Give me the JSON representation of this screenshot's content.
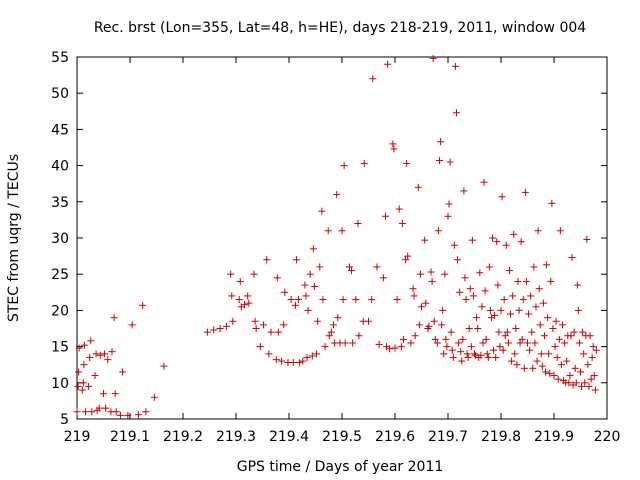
{
  "chart_data": {
    "type": "scatter",
    "title": "Rec. brst (Lon=355, Lat=48, h=HE), days 218-219, 2011, window 004",
    "xlabel": "GPS time / Days of year 2011",
    "ylabel": "STEC from uqrg / TECUs",
    "xlim": [
      219,
      220
    ],
    "ylim": [
      5,
      55
    ],
    "x_ticks": [
      "219",
      "219.1",
      "219.2",
      "219.3",
      "219.4",
      "219.5",
      "219.6",
      "219.7",
      "219.8",
      "219.9",
      "220"
    ],
    "y_ticks": [
      "5",
      "10",
      "15",
      "20",
      "25",
      "30",
      "35",
      "40",
      "45",
      "50",
      "55"
    ],
    "marker": "+",
    "color": "#cc0000",
    "grid": false,
    "series": [
      {
        "name": "STEC",
        "points": [
          [
            219.0,
            6.0
          ],
          [
            219.002,
            9.5
          ],
          [
            219.003,
            11.5
          ],
          [
            219.004,
            14.8
          ],
          [
            219.01,
            9.0
          ],
          [
            219.012,
            10.0
          ],
          [
            219.013,
            12.5
          ],
          [
            219.014,
            15.2
          ],
          [
            219.016,
            6.0
          ],
          [
            219.022,
            9.5
          ],
          [
            219.024,
            13.5
          ],
          [
            219.026,
            15.8
          ],
          [
            219.028,
            6.0
          ],
          [
            219.034,
            11.0
          ],
          [
            219.036,
            14.0
          ],
          [
            219.038,
            6.2
          ],
          [
            219.042,
            6.5
          ],
          [
            219.044,
            13.8
          ],
          [
            219.05,
            8.5
          ],
          [
            219.052,
            14.0
          ],
          [
            219.054,
            6.5
          ],
          [
            219.058,
            13.2
          ],
          [
            219.064,
            6.0
          ],
          [
            219.066,
            14.3
          ],
          [
            219.07,
            19.0
          ],
          [
            219.072,
            8.5
          ],
          [
            219.074,
            6.0
          ],
          [
            219.082,
            5.5
          ],
          [
            219.086,
            11.5
          ],
          [
            219.096,
            5.5
          ],
          [
            219.104,
            18.0
          ],
          [
            219.116,
            5.6
          ],
          [
            219.124,
            20.7
          ],
          [
            219.13,
            6.0
          ],
          [
            219.146,
            8.0
          ],
          [
            219.164,
            12.3
          ],
          [
            219.246,
            17.0
          ],
          [
            219.258,
            17.3
          ],
          [
            219.27,
            17.5
          ],
          [
            219.282,
            17.8
          ],
          [
            219.29,
            25.0
          ],
          [
            219.292,
            22.0
          ],
          [
            219.294,
            18.5
          ],
          [
            219.306,
            21.5
          ],
          [
            219.308,
            24.0
          ],
          [
            219.31,
            20.5
          ],
          [
            219.316,
            20.8
          ],
          [
            219.322,
            22.0
          ],
          [
            219.324,
            21.0
          ],
          [
            219.334,
            25.0
          ],
          [
            219.336,
            18.5
          ],
          [
            219.338,
            17.5
          ],
          [
            219.346,
            15.0
          ],
          [
            219.352,
            18.0
          ],
          [
            219.358,
            27.0
          ],
          [
            219.362,
            14.0
          ],
          [
            219.366,
            17.0
          ],
          [
            219.376,
            13.2
          ],
          [
            219.378,
            24.5
          ],
          [
            219.38,
            17.0
          ],
          [
            219.386,
            13.0
          ],
          [
            219.39,
            18.0
          ],
          [
            219.392,
            22.5
          ],
          [
            219.398,
            12.8
          ],
          [
            219.404,
            21.5
          ],
          [
            219.408,
            12.8
          ],
          [
            219.412,
            20.7
          ],
          [
            219.414,
            27.0
          ],
          [
            219.418,
            21.5
          ],
          [
            219.42,
            12.8
          ],
          [
            219.426,
            13.0
          ],
          [
            219.43,
            23.5
          ],
          [
            219.432,
            22.0
          ],
          [
            219.434,
            13.5
          ],
          [
            219.436,
            20.0
          ],
          [
            219.44,
            25.0
          ],
          [
            219.444,
            13.7
          ],
          [
            219.446,
            28.5
          ],
          [
            219.448,
            23.3
          ],
          [
            219.452,
            14.0
          ],
          [
            219.454,
            18.5
          ],
          [
            219.458,
            26.0
          ],
          [
            219.462,
            33.7
          ],
          [
            219.464,
            21.5
          ],
          [
            219.468,
            15.0
          ],
          [
            219.474,
            31.0
          ],
          [
            219.476,
            16.5
          ],
          [
            219.48,
            17.0
          ],
          [
            219.484,
            18.0
          ],
          [
            219.486,
            15.5
          ],
          [
            219.49,
            36.0
          ],
          [
            219.492,
            19.0
          ],
          [
            219.496,
            15.5
          ],
          [
            219.5,
            31.0
          ],
          [
            219.502,
            21.5
          ],
          [
            219.504,
            40.0
          ],
          [
            219.506,
            15.5
          ],
          [
            219.514,
            26.0
          ],
          [
            219.518,
            25.5
          ],
          [
            219.52,
            15.5
          ],
          [
            219.526,
            21.5
          ],
          [
            219.53,
            32.0
          ],
          [
            219.532,
            16.5
          ],
          [
            219.54,
            18.5
          ],
          [
            219.542,
            40.3
          ],
          [
            219.55,
            18.5
          ],
          [
            219.556,
            21.5
          ],
          [
            219.558,
            52.0
          ],
          [
            219.566,
            26.0
          ],
          [
            219.57,
            15.3
          ],
          [
            219.578,
            24.5
          ],
          [
            219.582,
            33.0
          ],
          [
            219.584,
            15.0
          ],
          [
            219.586,
            54.0
          ],
          [
            219.59,
            14.7
          ],
          [
            219.596,
            43.0
          ],
          [
            219.598,
            42.3
          ],
          [
            219.6,
            14.8
          ],
          [
            219.604,
            21.5
          ],
          [
            219.608,
            34.0
          ],
          [
            219.612,
            15.0
          ],
          [
            219.614,
            32.0
          ],
          [
            219.616,
            16.0
          ],
          [
            219.62,
            27.0
          ],
          [
            219.622,
            40.3
          ],
          [
            219.624,
            27.5
          ],
          [
            219.63,
            15.5
          ],
          [
            219.634,
            23.0
          ],
          [
            219.636,
            22.0
          ],
          [
            219.638,
            16.5
          ],
          [
            219.644,
            37.0
          ],
          [
            219.646,
            18.0
          ],
          [
            219.648,
            25.0
          ],
          [
            219.65,
            20.5
          ],
          [
            219.656,
            29.7
          ],
          [
            219.658,
            21.0
          ],
          [
            219.662,
            17.5
          ],
          [
            219.664,
            17.8
          ],
          [
            219.668,
            25.3
          ],
          [
            219.67,
            24.0
          ],
          [
            219.672,
            54.8
          ],
          [
            219.674,
            18.5
          ],
          [
            219.676,
            16.0
          ],
          [
            219.68,
            15.5
          ],
          [
            219.682,
            31.0
          ],
          [
            219.684,
            40.7
          ],
          [
            219.686,
            43.3
          ],
          [
            219.688,
            18.0
          ],
          [
            219.69,
            20.0
          ],
          [
            219.692,
            14.0
          ],
          [
            219.694,
            25.0
          ],
          [
            219.696,
            16.0
          ],
          [
            219.698,
            15.0
          ],
          [
            219.7,
            33.0
          ],
          [
            219.702,
            34.7
          ],
          [
            219.704,
            40.5
          ],
          [
            219.706,
            17.0
          ],
          [
            219.708,
            14.5
          ],
          [
            219.71,
            13.5
          ],
          [
            219.712,
            29.0
          ],
          [
            219.714,
            53.7
          ],
          [
            219.716,
            47.3
          ],
          [
            219.718,
            27.0
          ],
          [
            219.72,
            15.5
          ],
          [
            219.722,
            22.5
          ],
          [
            219.724,
            14.3
          ],
          [
            219.726,
            13.0
          ],
          [
            219.728,
            16.0
          ],
          [
            219.73,
            36.5
          ],
          [
            219.732,
            24.5
          ],
          [
            219.734,
            21.5
          ],
          [
            219.736,
            14.0
          ],
          [
            219.738,
            13.5
          ],
          [
            219.74,
            17.5
          ],
          [
            219.742,
            23.0
          ],
          [
            219.744,
            15.0
          ],
          [
            219.746,
            29.7
          ],
          [
            219.748,
            22.0
          ],
          [
            219.75,
            14.0
          ],
          [
            219.752,
            13.8
          ],
          [
            219.754,
            19.0
          ],
          [
            219.756,
            17.5
          ],
          [
            219.758,
            13.5
          ],
          [
            219.76,
            25.2
          ],
          [
            219.762,
            13.8
          ],
          [
            219.764,
            20.5
          ],
          [
            219.766,
            15.5
          ],
          [
            219.768,
            37.7
          ],
          [
            219.77,
            22.7
          ],
          [
            219.772,
            16.0
          ],
          [
            219.774,
            14.0
          ],
          [
            219.776,
            13.5
          ],
          [
            219.778,
            26.0
          ],
          [
            219.78,
            20.0
          ],
          [
            219.782,
            19.0
          ],
          [
            219.784,
            30.0
          ],
          [
            219.786,
            14.5
          ],
          [
            219.788,
            19.3
          ],
          [
            219.79,
            13.5
          ],
          [
            219.792,
            29.5
          ],
          [
            219.794,
            23.5
          ],
          [
            219.796,
            17.0
          ],
          [
            219.798,
            15.0
          ],
          [
            219.8,
            20.0
          ],
          [
            219.802,
            35.7
          ],
          [
            219.804,
            14.5
          ],
          [
            219.806,
            21.5
          ],
          [
            219.808,
            16.5
          ],
          [
            219.81,
            29.0
          ],
          [
            219.812,
            17.0
          ],
          [
            219.814,
            15.5
          ],
          [
            219.816,
            25.5
          ],
          [
            219.818,
            19.5
          ],
          [
            219.82,
            13.0
          ],
          [
            219.822,
            22.0
          ],
          [
            219.824,
            30.5
          ],
          [
            219.826,
            14.0
          ],
          [
            219.828,
            17.5
          ],
          [
            219.83,
            12.5
          ],
          [
            219.832,
            24.0
          ],
          [
            219.834,
            20.0
          ],
          [
            219.836,
            15.5
          ],
          [
            219.838,
            29.5
          ],
          [
            219.84,
            16.0
          ],
          [
            219.842,
            21.5
          ],
          [
            219.844,
            12.0
          ],
          [
            219.846,
            36.3
          ],
          [
            219.848,
            24.0
          ],
          [
            219.85,
            15.5
          ],
          [
            219.852,
            19.5
          ],
          [
            219.854,
            14.5
          ],
          [
            219.856,
            22.0
          ],
          [
            219.858,
            17.0
          ],
          [
            219.86,
            12.0
          ],
          [
            219.862,
            26.0
          ],
          [
            219.864,
            15.5
          ],
          [
            219.866,
            20.5
          ],
          [
            219.868,
            13.0
          ],
          [
            219.87,
            31.0
          ],
          [
            219.872,
            23.0
          ],
          [
            219.874,
            18.0
          ],
          [
            219.876,
            14.0
          ],
          [
            219.878,
            12.3
          ],
          [
            219.88,
            21.0
          ],
          [
            219.882,
            16.5
          ],
          [
            219.884,
            11.5
          ],
          [
            219.886,
            26.3
          ],
          [
            219.888,
            19.0
          ],
          [
            219.89,
            14.0
          ],
          [
            219.892,
            11.3
          ],
          [
            219.894,
            24.0
          ],
          [
            219.896,
            34.8
          ],
          [
            219.898,
            17.5
          ],
          [
            219.9,
            11.0
          ],
          [
            219.902,
            15.0
          ],
          [
            219.904,
            18.5
          ],
          [
            219.906,
            13.5
          ],
          [
            219.908,
            10.5
          ],
          [
            219.91,
            16.0
          ],
          [
            219.912,
            31.0
          ],
          [
            219.914,
            12.5
          ],
          [
            219.916,
            18.0
          ],
          [
            219.918,
            10.3
          ],
          [
            219.92,
            15.5
          ],
          [
            219.922,
            10.0
          ],
          [
            219.924,
            13.0
          ],
          [
            219.926,
            16.5
          ],
          [
            219.928,
            10.0
          ],
          [
            219.93,
            11.0
          ],
          [
            219.932,
            16.5
          ],
          [
            219.934,
            27.3
          ],
          [
            219.936,
            9.7
          ],
          [
            219.938,
            17.0
          ],
          [
            219.94,
            12.0
          ],
          [
            219.942,
            10.0
          ],
          [
            219.944,
            23.5
          ],
          [
            219.946,
            20.0
          ],
          [
            219.948,
            15.5
          ],
          [
            219.95,
            11.5
          ],
          [
            219.952,
            9.5
          ],
          [
            219.954,
            17.0
          ],
          [
            219.956,
            14.0
          ],
          [
            219.958,
            10.0
          ],
          [
            219.96,
            16.5
          ],
          [
            219.962,
            29.8
          ],
          [
            219.964,
            12.5
          ],
          [
            219.966,
            9.5
          ],
          [
            219.968,
            16.5
          ],
          [
            219.97,
            10.5
          ],
          [
            219.972,
            13.5
          ],
          [
            219.974,
            15.0
          ],
          [
            219.976,
            11.0
          ],
          [
            219.978,
            9.0
          ],
          [
            219.98,
            14.5
          ]
        ]
      }
    ]
  }
}
